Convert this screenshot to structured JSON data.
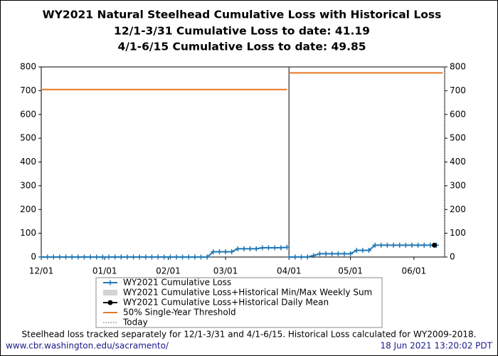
{
  "chart_data": {
    "type": "line",
    "title": "WY2021 Natural Steelhead Cumulative Loss with Historical Loss",
    "subtitle": [
      "12/1-3/31 Cumulative Loss to date: 41.19",
      "4/1-6/15 Cumulative Loss to date: 49.85"
    ],
    "xlim": [
      0,
      197
    ],
    "xticks": [
      {
        "value": 0,
        "label": "12/01"
      },
      {
        "value": 31,
        "label": "01/01"
      },
      {
        "value": 62,
        "label": "02/01"
      },
      {
        "value": 90,
        "label": "03/01"
      },
      {
        "value": 121,
        "label": "04/01"
      },
      {
        "value": 151,
        "label": "05/01"
      },
      {
        "value": 182,
        "label": "06/01"
      }
    ],
    "split_x": 121,
    "ylim": [
      0,
      800
    ],
    "yticks": [
      0,
      100,
      200,
      300,
      400,
      500,
      600,
      700,
      800
    ],
    "grid": false,
    "series": [
      {
        "name": "WY2021 Cumulative Loss",
        "color": "#1f77b4",
        "style": "line-plus",
        "x": [
          0,
          3,
          6,
          9,
          12,
          15,
          18,
          21,
          24,
          27,
          30,
          33,
          36,
          39,
          42,
          45,
          48,
          51,
          54,
          57,
          60,
          63,
          66,
          69,
          72,
          75,
          78,
          81,
          84,
          87,
          90,
          93,
          96,
          99,
          102,
          105,
          108,
          111,
          114,
          117,
          120,
          121,
          124,
          127,
          130,
          133,
          136,
          139,
          142,
          145,
          148,
          151,
          154,
          157,
          160,
          163,
          166,
          169,
          172,
          175,
          178,
          181,
          184,
          187,
          190,
          193
        ],
        "values": [
          0,
          0,
          0,
          0,
          0,
          0,
          0,
          0,
          0,
          0,
          0,
          0,
          0,
          0,
          0,
          0,
          0,
          0,
          0,
          0,
          0,
          0,
          0,
          0,
          0,
          0,
          0,
          0,
          22,
          22,
          22,
          22,
          35,
          35,
          35,
          35,
          39,
          39,
          39,
          39,
          41.19,
          0,
          0,
          0,
          0,
          6,
          14,
          14,
          14,
          14,
          14,
          14,
          28,
          28,
          28,
          49.85,
          49.85,
          49.85,
          49.85,
          49.85,
          49.85,
          49.85,
          49.85,
          49.85,
          49.85,
          49.85
        ]
      },
      {
        "name": "WY2021 Cumulative Loss+Historical Min/Max Weekly Sum",
        "color": "#d3d3d3",
        "style": "band"
      },
      {
        "name": "WY2021 Cumulative Loss+Historical Daily Mean",
        "color": "#000000",
        "style": "line-dot",
        "x": [
          192
        ],
        "values": [
          49.85
        ]
      },
      {
        "name": "50% Single-Year Threshold",
        "color": "#e87722",
        "style": "line",
        "x": [
          0,
          120,
          121,
          196
        ],
        "values": [
          705,
          705,
          775,
          775
        ]
      },
      {
        "name": "Today",
        "color": "#555555",
        "style": "vline",
        "x": [
          197
        ]
      }
    ],
    "footnote": "Steelhead loss tracked separately for 12/1-3/31 and 4/1-6/15. Historical Loss calculated for WY2009-2018.",
    "source": "www.cbr.washington.edu/sacramento/",
    "timestamp": "18 Jun 2021 13:20:02 PDT"
  }
}
